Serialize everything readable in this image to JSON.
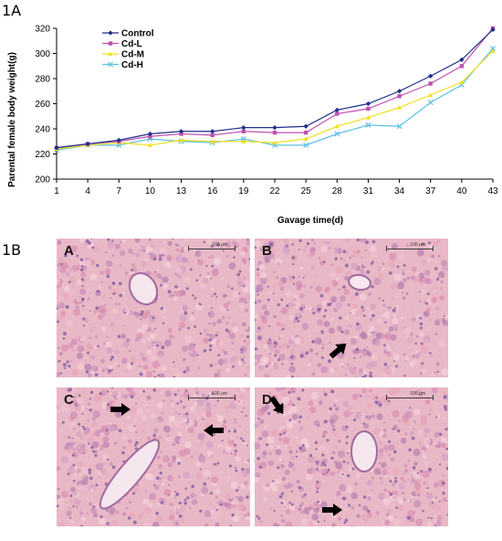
{
  "figure": {
    "label_1a": "1A",
    "label_1b": "1B"
  },
  "chart_data": {
    "type": "line",
    "xlabel": "Gavage time(d)",
    "ylabel": "Parental female body weight(g)",
    "x": [
      1,
      4,
      7,
      10,
      13,
      16,
      19,
      22,
      25,
      28,
      31,
      34,
      37,
      40,
      43
    ],
    "xlim": [
      1,
      43
    ],
    "ylim": [
      200,
      320
    ],
    "yticks": [
      200,
      220,
      240,
      260,
      280,
      300,
      320
    ],
    "grid": false,
    "legend_position": "top-left",
    "series": [
      {
        "name": "Control",
        "color": "#1f2d8a",
        "marker": "diamond",
        "values": [
          225,
          228,
          231,
          236,
          238,
          238,
          241,
          241,
          242,
          255,
          260,
          270,
          282,
          295,
          319
        ]
      },
      {
        "name": "Cd-L",
        "color": "#c050b0",
        "marker": "square",
        "values": [
          225,
          228,
          230,
          234,
          236,
          235,
          238,
          237,
          237,
          252,
          256,
          266,
          276,
          290,
          320
        ]
      },
      {
        "name": "Cd-M",
        "color": "#f0e020",
        "marker": "triangle",
        "values": [
          224,
          227,
          229,
          227,
          231,
          230,
          230,
          229,
          232,
          242,
          249,
          257,
          267,
          277,
          302
        ]
      },
      {
        "name": "Cd-H",
        "color": "#5fc0e0",
        "marker": "x",
        "values": [
          223,
          227,
          227,
          232,
          230,
          229,
          232,
          227,
          227,
          236,
          243,
          242,
          261,
          275,
          304
        ]
      }
    ]
  },
  "micrographs": [
    {
      "letter": "A",
      "scale": "100 μm",
      "arrows": []
    },
    {
      "letter": "B",
      "scale": "100 μm",
      "arrows": [
        "ne"
      ]
    },
    {
      "letter": "C",
      "scale": "100 μm",
      "arrows": [
        "right",
        "left"
      ]
    },
    {
      "letter": "D",
      "scale": "100 μm",
      "arrows": [
        "se",
        "right"
      ]
    }
  ]
}
